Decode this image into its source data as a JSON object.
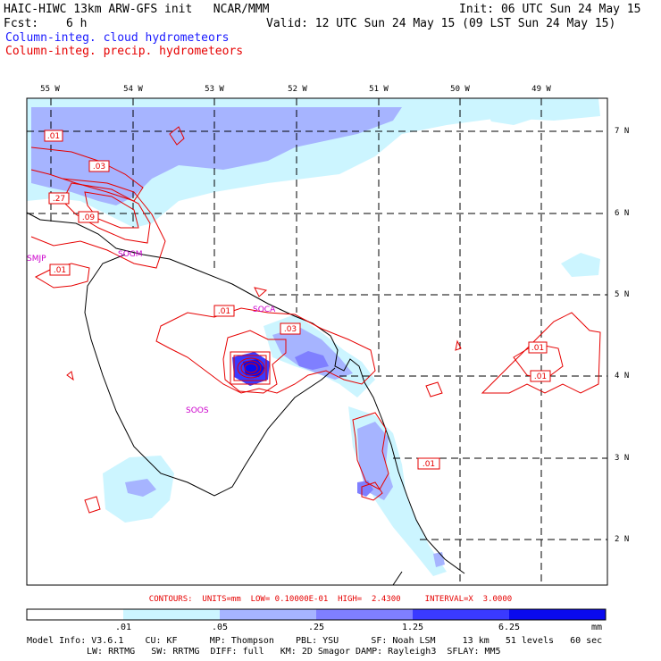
{
  "header": {
    "title_left": "HAIC-HIWC 13km ARW-GFS init   NCAR/MMM",
    "init": "Init: 06 UTC Sun 24 May 15",
    "fcst_label": "Fcst:",
    "fcst_value": "6 h",
    "valid": "Valid: 12 UTC Sun 24 May 15 (09 LST Sun 24 May 15)",
    "field_blue": "Column-integ. cloud hydrometeors",
    "field_red": "Column-integ. precip. hydrometeors"
  },
  "map": {
    "lon_labels": [
      "55 W",
      "54 W",
      "53 W",
      "52 W",
      "51 W",
      "50 W",
      "49 W"
    ],
    "lat_labels": [
      "7 N",
      "6 N",
      "5 N",
      "4 N",
      "3 N",
      "2 N"
    ],
    "stations": [
      "SMJP",
      "SOGM",
      "SOCA",
      "SOOS"
    ],
    "contour_labels": [
      ".01",
      ".03",
      ".27",
      ".09",
      ".01",
      ".01",
      ".03",
      ".01",
      ".01",
      ".01"
    ]
  },
  "contours_line": "CONTOURS:  UNITS=mm  LOW= 0.10000E-01  HIGH=  2.4300     INTERVAL=X  3.0000",
  "colorbar": {
    "ticks": [
      ".01",
      ".05",
      ".25",
      "1.25",
      "6.25"
    ],
    "unit": "mm",
    "colors": [
      "#ffffff",
      "#ccf5ff",
      "#a6b4ff",
      "#7f7fff",
      "#3a3aff",
      "#0a0aee"
    ]
  },
  "model_info": {
    "line1": "Model Info: V3.6.1    CU: KF      MP: Thompson    PBL: YSU      SF: Noah LSM     13 km   51 levels   60 sec",
    "line2": "LW: RRTMG   SW: RRTMG  DIFF: full   KM: 2D Smagor DAMP: Rayleigh3  SFLAY: MM5"
  }
}
